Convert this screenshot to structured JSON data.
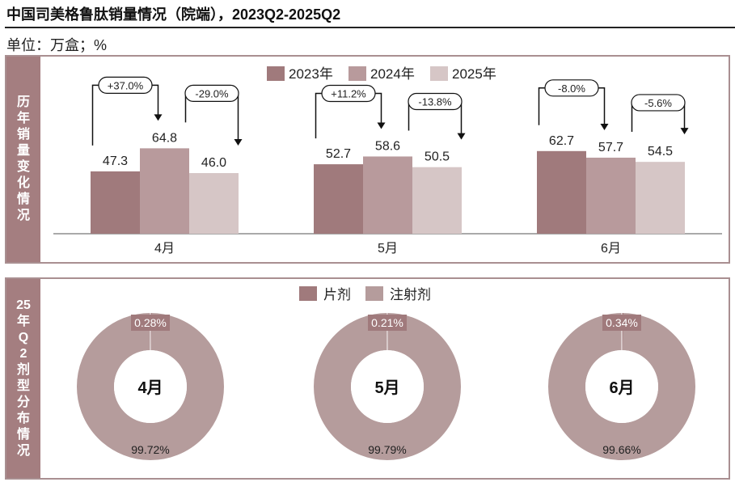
{
  "title": "中国司美格鲁肽销量情况（院端），2023Q2-2025Q2",
  "unit": "单位：万盒；%",
  "colors": {
    "c2023": "#a07a7c",
    "c2024": "#b89a9c",
    "c2025": "#d6c6c6",
    "pill": "#a47e80",
    "donut_main": "#b59c9c",
    "border": "#a98f91"
  },
  "panel1": {
    "label": "历年销量变化情况"
  },
  "panel2": {
    "label": "25年Q2剂型分布情况"
  },
  "chart_data": [
    {
      "type": "bar",
      "categories": [
        "4月",
        "5月",
        "6月"
      ],
      "series": [
        {
          "name": "2023年",
          "values": [
            47.3,
            52.7,
            62.7
          ]
        },
        {
          "name": "2024年",
          "values": [
            64.8,
            58.6,
            57.7
          ]
        },
        {
          "name": "2025年",
          "values": [
            46.0,
            50.5,
            54.5
          ]
        }
      ],
      "annotations": [
        {
          "category": "4月",
          "yoy_2024": "+37.0%",
          "yoy_2025": "-29.0%"
        },
        {
          "category": "5月",
          "yoy_2024": "+11.2%",
          "yoy_2025": "-13.8%"
        },
        {
          "category": "6月",
          "yoy_2024": "-8.0%",
          "yoy_2025": "-5.6%"
        }
      ],
      "legend_position": "top"
    },
    {
      "type": "pie",
      "legend": [
        "片剂",
        "注射剂"
      ],
      "charts": [
        {
          "label": "4月",
          "tablet": 0.28,
          "injection": 99.72,
          "tablet_text": "0.28%",
          "injection_text": "99.72%"
        },
        {
          "label": "5月",
          "tablet": 0.21,
          "injection": 99.79,
          "tablet_text": "0.21%",
          "injection_text": "99.79%"
        },
        {
          "label": "6月",
          "tablet": 0.34,
          "injection": 99.66,
          "tablet_text": "0.34%",
          "injection_text": "99.66%"
        }
      ],
      "legend_position": "top"
    }
  ]
}
